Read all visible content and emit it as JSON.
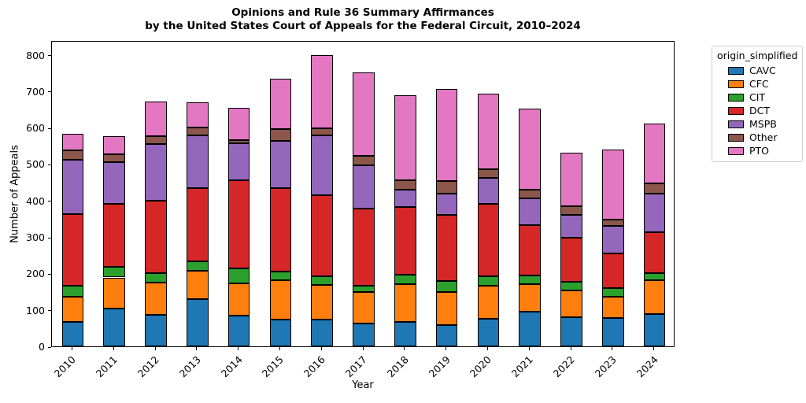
{
  "title": {
    "line1": "Opinions and Rule 36 Summary Affirmances",
    "line2": "by the United States Court of Appeals for the Federal Circuit, 2010–2024"
  },
  "chart_data": {
    "type": "bar",
    "stacked": true,
    "title": "Opinions and Rule 36 Summary Affirmances by the United States Court of Appeals for the Federal Circuit, 2010–2024",
    "xlabel": "Year",
    "ylabel": "Number of Appeals",
    "categories": [
      "2010",
      "2011",
      "2012",
      "2013",
      "2014",
      "2015",
      "2016",
      "2017",
      "2018",
      "2019",
      "2020",
      "2021",
      "2022",
      "2023",
      "2024"
    ],
    "series": [
      {
        "name": "CAVC",
        "color": "#1f77b4",
        "values": [
          66,
          103,
          87,
          129,
          85,
          74,
          74,
          63,
          66,
          58,
          76,
          96,
          79,
          78,
          88
        ]
      },
      {
        "name": "CFC",
        "color": "#ff7f0e",
        "values": [
          69,
          86,
          88,
          79,
          88,
          108,
          95,
          86,
          105,
          90,
          90,
          74,
          74,
          59,
          94
        ]
      },
      {
        "name": "CIT",
        "color": "#2ca02c",
        "values": [
          31,
          29,
          26,
          25,
          40,
          24,
          23,
          18,
          25,
          32,
          27,
          25,
          25,
          23,
          19
        ]
      },
      {
        "name": "DCT",
        "color": "#d62728",
        "values": [
          196,
          172,
          199,
          201,
          243,
          229,
          222,
          210,
          186,
          180,
          197,
          138,
          121,
          94,
          113
        ]
      },
      {
        "name": "MSPB",
        "color": "#9467bd",
        "values": [
          149,
          115,
          155,
          145,
          101,
          128,
          164,
          120,
          47,
          60,
          72,
          72,
          61,
          76,
          106
        ]
      },
      {
        "name": "Other",
        "color": "#8c564b",
        "values": [
          27,
          23,
          22,
          22,
          9,
          32,
          20,
          25,
          27,
          34,
          23,
          25,
          25,
          17,
          26
        ]
      },
      {
        "name": "PTO",
        "color": "#e377c2",
        "values": [
          46,
          48,
          94,
          68,
          89,
          140,
          202,
          230,
          232,
          252,
          209,
          222,
          146,
          192,
          166
        ]
      }
    ],
    "totals": [
      584,
      576,
      671,
      669,
      655,
      735,
      800,
      752,
      688,
      706,
      694,
      652,
      531,
      539,
      612
    ],
    "ylim": [
      0,
      840
    ],
    "yticks": [
      0,
      100,
      200,
      300,
      400,
      500,
      600,
      700,
      800
    ],
    "grid": false,
    "bar_edge_color": "#000000",
    "legend": {
      "title": "origin_simplified",
      "position": "outside-upper-right"
    }
  }
}
